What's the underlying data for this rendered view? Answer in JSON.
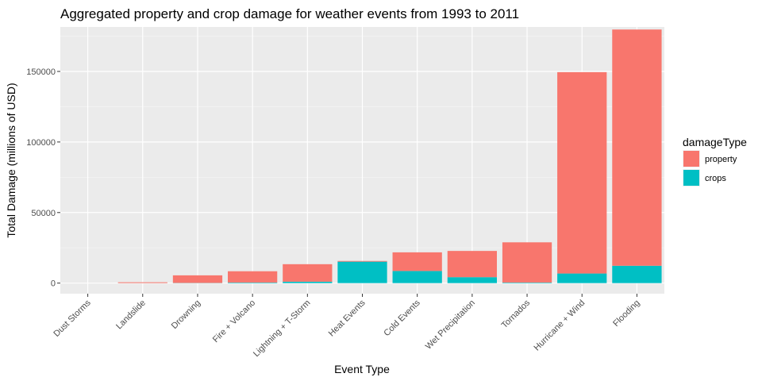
{
  "chart_data": {
    "type": "bar",
    "stacked": true,
    "title": "Aggregated property and crop damage for weather events from 1993 to 2011",
    "xlabel": "Event Type",
    "ylabel": "Total Damage (millions of USD)",
    "ylim": [
      -7500,
      181500
    ],
    "yticks": [
      0,
      50000,
      100000,
      150000
    ],
    "yticklabels": [
      "0",
      "50000",
      "100000",
      "150000"
    ],
    "grid": true,
    "legend": {
      "title": "damageType",
      "position": "right"
    },
    "categories": [
      "Dust Storms",
      "Landslide",
      "Drowning",
      "Fire + Volcano",
      "Lightning + T-Storm",
      "Heat Events",
      "Cold Events",
      "Wet Precipitation",
      "Tornados",
      "Hurricane + Wind",
      "Flooding"
    ],
    "series": [
      {
        "name": "crops",
        "color": "#00BFC4",
        "values": [
          0,
          20,
          100,
          400,
          1000,
          15200,
          8600,
          4200,
          400,
          6800,
          12300
        ]
      },
      {
        "name": "property",
        "color": "#F8766D",
        "values": [
          10,
          580,
          5400,
          8000,
          12400,
          500,
          13200,
          18600,
          28500,
          142700,
          167400
        ]
      }
    ],
    "legend_order": [
      "property",
      "crops"
    ]
  }
}
